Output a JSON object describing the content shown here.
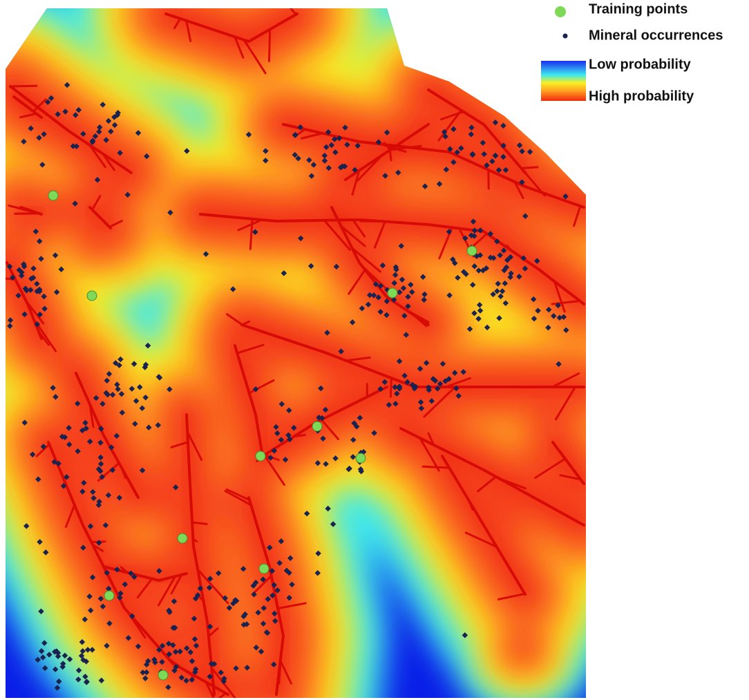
{
  "legend": {
    "training_points": "Training points",
    "mineral_occurrences": "Mineral occurrences",
    "low_probability": "Low probability",
    "high_probability": "High probability"
  }
}
